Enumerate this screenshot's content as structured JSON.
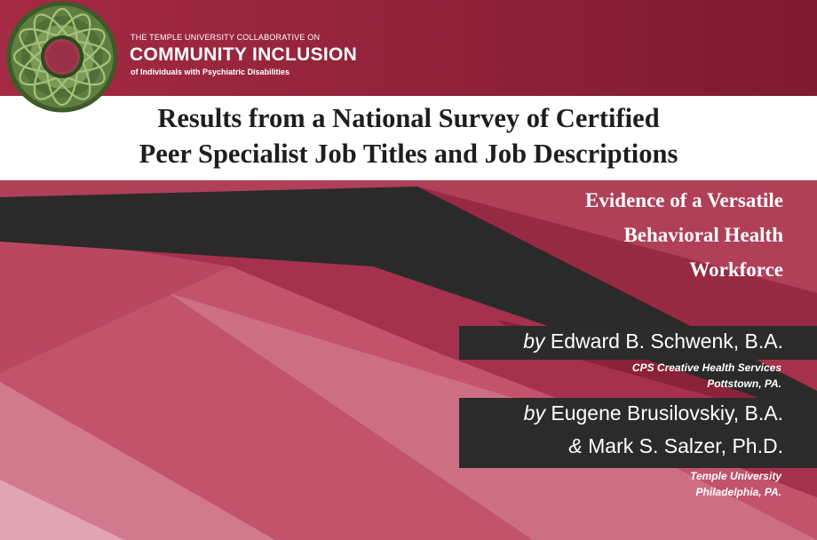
{
  "org": {
    "line1": "THE TEMPLE UNIVERSITY COLLABORATIVE ON",
    "line2": "COMMUNITY INCLUSION",
    "line3": "of Individuals with Psychiatric Disabilities",
    "logo": "green-wreath-logo"
  },
  "title": {
    "line1": "Results from a National Survey of Certified",
    "line2": "Peer Specialist Job Titles and Job Descriptions"
  },
  "subtitle": {
    "line1": "Evidence of a Versatile",
    "line2": "Behavioral Health",
    "line3": "Workforce"
  },
  "authors": [
    {
      "prefix": "by",
      "name": "Edward B. Schwenk, B.A.",
      "affiliation": [
        "CPS Creative Health Services",
        "Pottstown, PA."
      ]
    },
    {
      "prefix": "by",
      "name": "Eugene Brusilovskiy, B.A.",
      "prefix2": "&",
      "name2": "Mark S. Salzer, Ph.D.",
      "affiliation": [
        "Temple University",
        "Philadelphia, PA."
      ]
    }
  ],
  "colors": {
    "header_maroon": "#8e1f37",
    "slide_maroon": "#a6314c",
    "dark_band": "#2b2b2b",
    "title_text": "#1e1e1e"
  }
}
